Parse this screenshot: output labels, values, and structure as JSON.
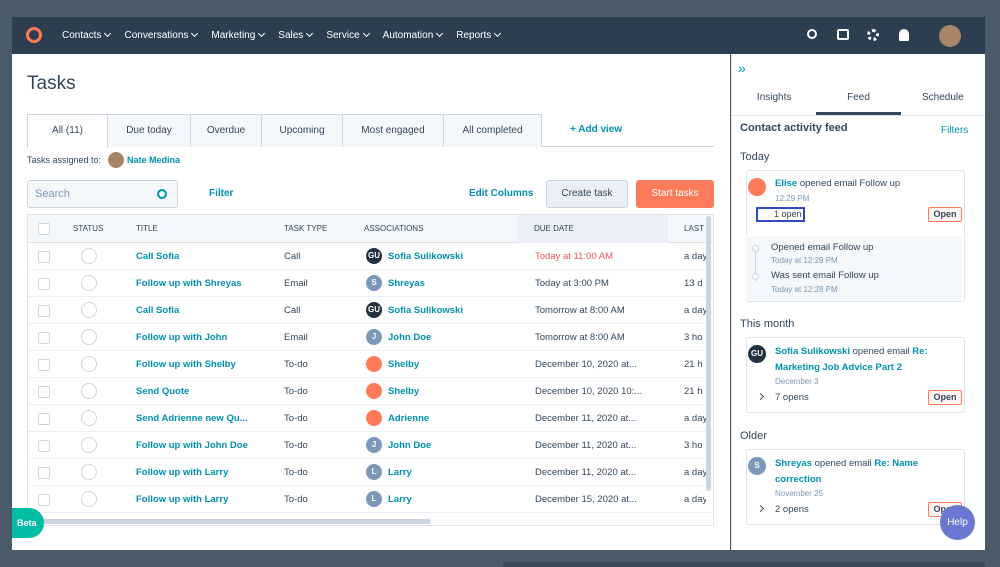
{
  "nav": {
    "items": [
      "Contacts",
      "Conversations",
      "Marketing",
      "Sales",
      "Service",
      "Automation",
      "Reports"
    ]
  },
  "page_title": "Tasks",
  "tabs": {
    "items": [
      "All (11)",
      "Due today",
      "Overdue",
      "Upcoming",
      "Most engaged",
      "All completed"
    ],
    "add_view": "+ Add view"
  },
  "assigned": {
    "label": "Tasks assigned to:",
    "name": "Nate Medina"
  },
  "toolbar": {
    "search": "Search",
    "filter": "Filter",
    "edit_columns": "Edit Columns",
    "create_task": "Create task",
    "start_tasks": "Start tasks"
  },
  "table": {
    "columns": [
      "STATUS",
      "TITLE",
      "TASK TYPE",
      "ASSOCIATIONS",
      "DUE DATE",
      "LAST"
    ],
    "rows": [
      {
        "title": "Call Sofia",
        "type": "Call",
        "assoc": "Sofia Sulikowski",
        "avatar": "GU",
        "due": "Today at 11:00 AM",
        "last": "a day"
      },
      {
        "title": "Follow up with Shreyas",
        "type": "Email",
        "assoc": "Shreyas",
        "avatar": "S",
        "due": "Today at 3:00 PM",
        "last": "13 d"
      },
      {
        "title": "Call Sofia",
        "type": "Call",
        "assoc": "Sofia Sulikowski",
        "avatar": "GU",
        "due": "Tomorrow at 8:00 AM",
        "last": "a day"
      },
      {
        "title": "Follow up with John",
        "type": "Email",
        "assoc": "John Doe",
        "avatar": "J",
        "due": "Tomorrow at 8:00 AM",
        "last": "3 ho"
      },
      {
        "title": "Follow up with Shelby",
        "type": "To-do",
        "assoc": "Shelby",
        "avatar": null,
        "due": "December 10, 2020 at...",
        "last": "21 h"
      },
      {
        "title": "Send Quote",
        "type": "To-do",
        "assoc": "Shelby",
        "avatar": null,
        "due": "December 10, 2020 10:...",
        "last": "21 h"
      },
      {
        "title": "Send Adrienne new Qu...",
        "type": "To-do",
        "assoc": "Adrienne",
        "avatar": null,
        "due": "December 11, 2020 at...",
        "last": "a day"
      },
      {
        "title": "Follow up with John Doe",
        "type": "To-do",
        "assoc": "John Doe",
        "avatar": "J",
        "due": "December 11, 2020 at...",
        "last": "3 ho"
      },
      {
        "title": "Follow up with Larry",
        "type": "To-do",
        "assoc": "Larry",
        "avatar": "L",
        "due": "December 11, 2020 at...",
        "last": "a day"
      },
      {
        "title": "Follow up with Larry",
        "type": "To-do",
        "assoc": "Larry",
        "avatar": "L",
        "due": "December 15, 2020 at...",
        "last": "a day"
      }
    ]
  },
  "sidebar": {
    "tabs": [
      "Insights",
      "Feed",
      "Schedule"
    ],
    "heading": "Contact activity feed",
    "filters": "Filters",
    "today": {
      "label": "Today",
      "name": "Elise",
      "action": "opened email Follow up",
      "time": "12:29 PM",
      "opens": "1 open",
      "button": "Open",
      "history": [
        "Opened email Follow up",
        "Today at 12:29 PM",
        "Was sent email Follow up",
        "Today at 12:28 PM"
      ]
    },
    "month": {
      "label": "This month",
      "avatar": "GU",
      "name": "Sofia Sulikowski",
      "action": "opened email",
      "subject": "Re: Marketing Job Advice Part 2",
      "date": "December 3",
      "opens": "7 opens",
      "button": "Open"
    },
    "older": {
      "label": "Older",
      "avatar": "S",
      "name": "Shreyas",
      "action": "opened email",
      "subject": "Re: Name correction",
      "date": "November 25",
      "opens": "2 opens",
      "button": "Open"
    }
  },
  "beta": "Beta",
  "help": "Help"
}
